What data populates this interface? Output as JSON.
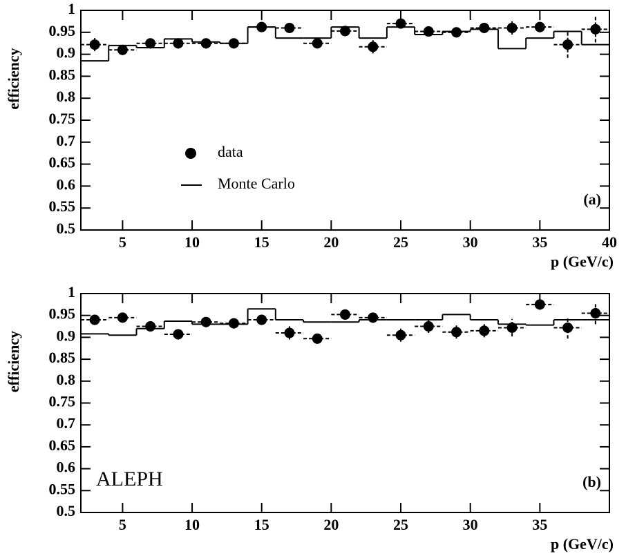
{
  "chart_data": [
    {
      "type": "efficiency",
      "panel_label": "(a)",
      "x_label": "p (GeV/c)",
      "y_label": "efficiency",
      "xlim": [
        2,
        40
      ],
      "ylim": [
        0.5,
        1
      ],
      "xticks": [
        5,
        10,
        15,
        20,
        25,
        30,
        35,
        40
      ],
      "yticks": [
        0.5,
        0.55,
        0.6,
        0.65,
        0.7,
        0.75,
        0.8,
        0.85,
        0.9,
        0.95,
        1
      ],
      "legend": "center-left",
      "series": [
        {
          "name": "data",
          "color": "#000000",
          "x": [
            3,
            5,
            7,
            9,
            11,
            13,
            15,
            17,
            19,
            21,
            23,
            25,
            27,
            29,
            31,
            33,
            35,
            37,
            39
          ],
          "values": [
            0.922,
            0.91,
            0.925,
            0.925,
            0.925,
            0.925,
            0.962,
            0.96,
            0.925,
            0.953,
            0.917,
            0.97,
            0.952,
            0.95,
            0.96,
            0.96,
            0.962,
            0.922,
            0.957
          ],
          "errors": [
            0.015,
            0.012,
            0.012,
            0.012,
            0.012,
            0.012,
            0.01,
            0.01,
            0.012,
            0.012,
            0.015,
            0.01,
            0.012,
            0.012,
            0.012,
            0.015,
            0.012,
            0.03,
            0.03
          ]
        },
        {
          "name": "Monte Carlo",
          "color": "#000000",
          "bins": [
            2,
            4,
            6,
            8,
            10,
            12,
            14,
            16,
            18,
            20,
            22,
            24,
            26,
            28,
            30,
            32,
            34,
            36,
            38,
            40
          ],
          "values": [
            0.885,
            0.92,
            0.915,
            0.935,
            0.928,
            0.925,
            0.962,
            0.937,
            0.937,
            0.962,
            0.937,
            0.962,
            0.945,
            0.952,
            0.957,
            0.913,
            0.937,
            0.952,
            0.922
          ]
        }
      ]
    },
    {
      "type": "efficiency",
      "panel_label": "(b)",
      "annotation": "ALEPH",
      "x_label": "p (GeV/c)",
      "y_label": "efficiency",
      "xlim": [
        2,
        40
      ],
      "ylim": [
        0.5,
        1
      ],
      "xticks": [
        5,
        10,
        15,
        20,
        25,
        30,
        35
      ],
      "yticks": [
        0.5,
        0.55,
        0.6,
        0.65,
        0.7,
        0.75,
        0.8,
        0.85,
        0.9,
        0.95,
        1
      ],
      "series": [
        {
          "color": "#000000",
          "x": [
            3,
            5,
            7,
            9,
            11,
            13,
            15,
            17,
            19,
            21,
            23,
            25,
            27,
            29,
            31,
            33,
            35,
            37,
            39
          ],
          "values": [
            0.94,
            0.945,
            0.925,
            0.907,
            0.935,
            0.932,
            0.94,
            0.91,
            0.897,
            0.952,
            0.945,
            0.905,
            0.925,
            0.912,
            0.915,
            0.922,
            0.975,
            0.922,
            0.955
          ],
          "errors": [
            0.012,
            0.01,
            0.012,
            0.012,
            0.012,
            0.012,
            0.012,
            0.015,
            0.012,
            0.012,
            0.012,
            0.015,
            0.015,
            0.015,
            0.015,
            0.02,
            0.012,
            0.025,
            0.025
          ]
        },
        {
          "color": "#000000",
          "bins": [
            2,
            4,
            6,
            8,
            10,
            12,
            14,
            16,
            18,
            20,
            22,
            24,
            26,
            28,
            30,
            32,
            34,
            36,
            38,
            40
          ],
          "values": [
            0.908,
            0.905,
            0.92,
            0.937,
            0.93,
            0.93,
            0.965,
            0.94,
            0.935,
            0.935,
            0.94,
            0.94,
            0.94,
            0.952,
            0.94,
            0.93,
            0.928,
            0.94,
            0.94
          ]
        }
      ]
    }
  ]
}
